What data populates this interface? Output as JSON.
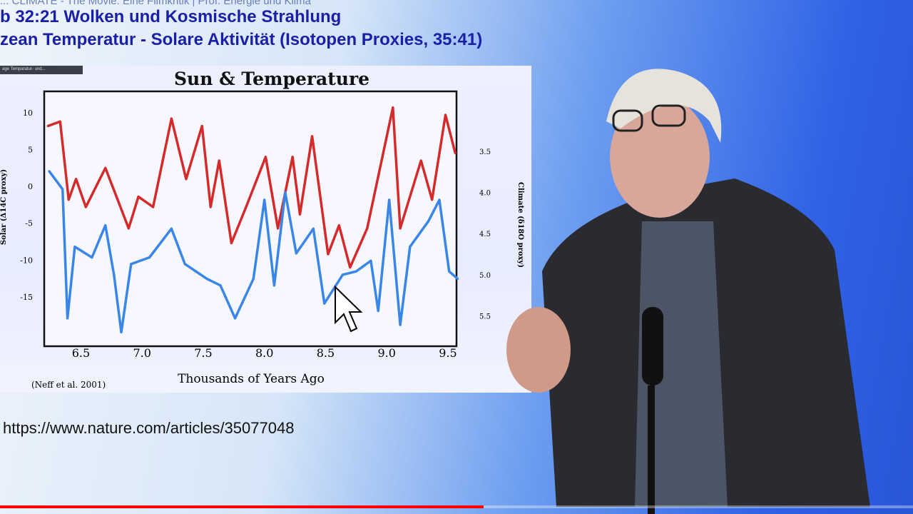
{
  "header": {
    "cut_text": "... CLIMATE - The Movie: Eine Filmkritik | Prof. Energie und Klima",
    "line1": "b 32:21 Wolken und Kosmische Strahlung",
    "line2": "zean Temperatur - Solare Aktivität  (Isotopen Proxies, 35:41)"
  },
  "slide": {
    "tab_label": "age Temparatur- und...",
    "citation": "(Neff et al. 2001)",
    "url": "https://www.nature.com/articles/35077048"
  },
  "video": {
    "progress_percent": 53,
    "progress_color": "#ff0000"
  },
  "chart_data": {
    "type": "line",
    "title": "Sun & Temperature",
    "xlabel": "Thousands of Years Ago",
    "ylabel_left": "Solar (Δ14C proxy)",
    "ylabel_right": "Climate (δ18O proxy)",
    "xlim": [
      6.2,
      9.57
    ],
    "ylim_left": [
      -21.7,
      12.9
    ],
    "ylim_right": [
      2.77,
      5.87
    ],
    "right_axis_inverted": true,
    "x_ticks": [
      "6.5",
      "7.0",
      "7.5",
      "8.0",
      "8.5",
      "9.0",
      "9.5"
    ],
    "y_ticks_left": [
      "10",
      "5",
      "0",
      "-5",
      "-10",
      "-15"
    ],
    "y_ticks_right": [
      "3.5",
      "4.0",
      "4.5",
      "5.0",
      "5.5"
    ],
    "grid": false,
    "series": [
      {
        "axis": "left",
        "color": "#d42a2a",
        "x": [
          6.23,
          6.33,
          6.4,
          6.46,
          6.54,
          6.7,
          6.8,
          6.89,
          6.97,
          7.09,
          7.24,
          7.36,
          7.49,
          7.56,
          7.63,
          7.73,
          7.85,
          8.01,
          8.11,
          8.23,
          8.29,
          8.39,
          8.52,
          8.61,
          8.7,
          8.84,
          9.05,
          9.11,
          9.28,
          9.37,
          9.48,
          9.56
        ],
        "y": [
          8.2,
          8.8,
          -1.8,
          1,
          -2.8,
          2.5,
          -1.8,
          -5.7,
          -1.4,
          -2.8,
          9.2,
          1,
          8.2,
          -2.8,
          3.5,
          -7.7,
          -2.8,
          4,
          -5.7,
          4,
          -3.8,
          6.8,
          -9.2,
          -5.3,
          -11,
          -5.7,
          10.7,
          -5.7,
          3.5,
          -1.8,
          9.7,
          4.5
        ]
      },
      {
        "axis": "right",
        "color": "#3a86e8",
        "x": [
          6.24,
          6.35,
          6.39,
          6.45,
          6.59,
          6.7,
          6.77,
          6.83,
          6.91,
          7.06,
          7.24,
          7.35,
          7.53,
          7.64,
          7.76,
          7.91,
          8.0,
          8.08,
          8.17,
          8.26,
          8.4,
          8.49,
          8.64,
          8.75,
          8.87,
          8.93,
          9.02,
          9.11,
          9.19,
          9.34,
          9.43,
          9.51,
          9.58
        ],
        "y": [
          3.74,
          3.96,
          5.53,
          4.66,
          4.79,
          4.4,
          5.0,
          5.7,
          4.87,
          4.79,
          4.44,
          4.87,
          5.05,
          5.13,
          5.53,
          5.05,
          4.09,
          5.13,
          4.0,
          4.74,
          4.44,
          5.35,
          5.0,
          4.96,
          4.83,
          5.44,
          4.09,
          5.61,
          4.66,
          4.35,
          4.09,
          4.96,
          5.05
        ]
      }
    ]
  }
}
